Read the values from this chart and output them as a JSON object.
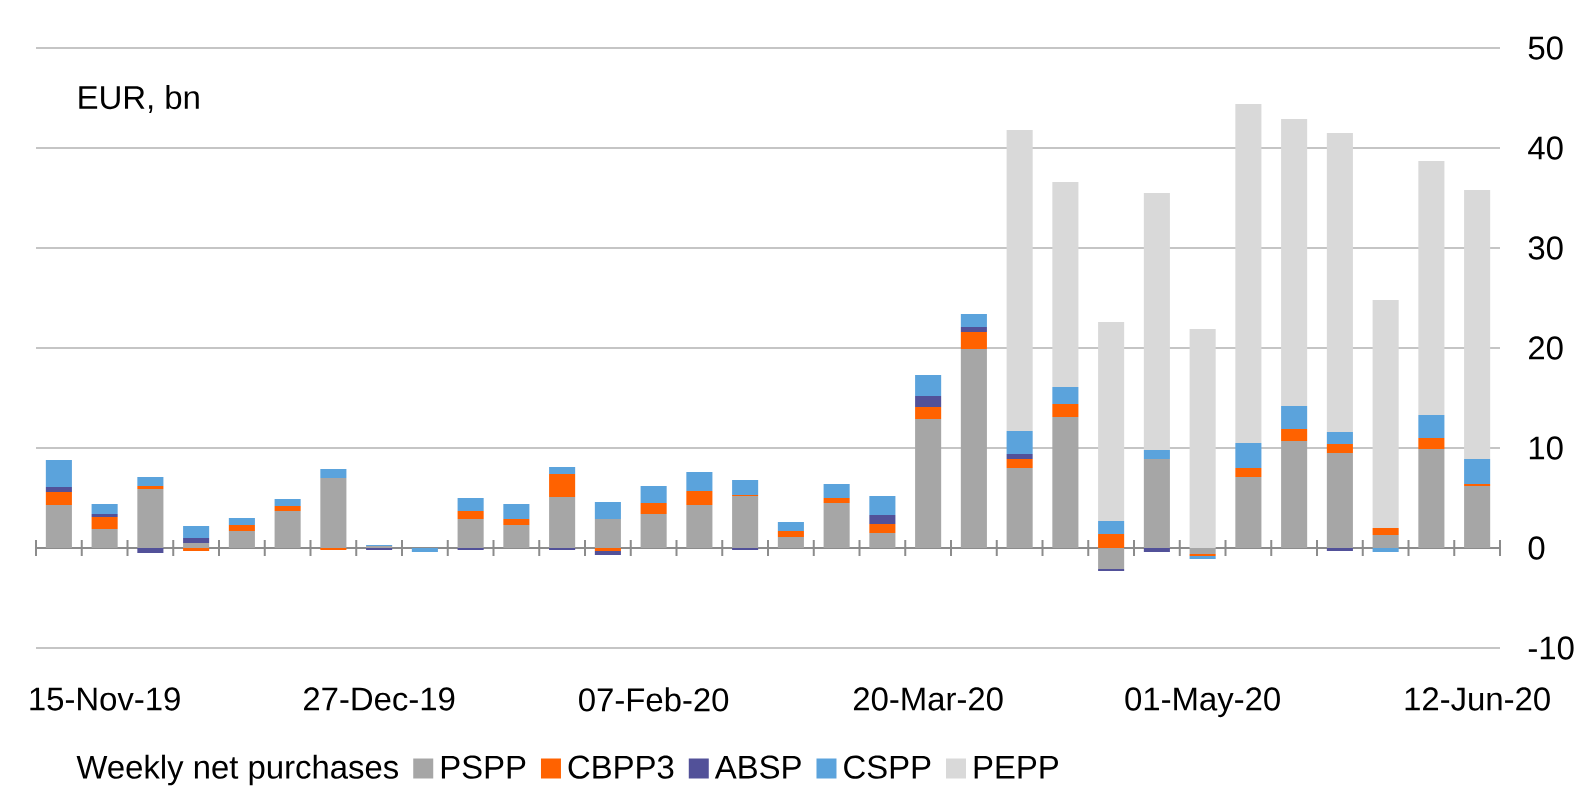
{
  "chart_data": {
    "type": "bar",
    "stacked": true,
    "categories": [
      null,
      "15-Nov-19",
      null,
      null,
      null,
      null,
      null,
      "27-Dec-19",
      null,
      null,
      null,
      null,
      null,
      "07-Feb-20",
      null,
      null,
      null,
      null,
      null,
      "20-Mar-20",
      null,
      null,
      null,
      null,
      null,
      "01-May-20",
      null,
      null,
      null,
      null,
      null,
      "12-Jun-20"
    ],
    "ylabel": "EUR, bn",
    "legend_title": "Weekly net purchases",
    "series": [
      {
        "name": "PSPP",
        "color": "#a6a6a6",
        "values": [
          4.3,
          1.9,
          5.9,
          0.5,
          1.7,
          3.7,
          7.0,
          0.2,
          null,
          2.9,
          2.3,
          5.1,
          2.9,
          3.4,
          4.3,
          5.2,
          1.1,
          4.5,
          1.5,
          12.9,
          19.9,
          8.0,
          13.1,
          -2.1,
          8.9,
          -0.6,
          7.1,
          10.7,
          9.5,
          1.3,
          9.9,
          6.2
        ]
      },
      {
        "name": "CBPP3",
        "color": "#ff6200",
        "values": [
          1.3,
          1.2,
          0.3,
          -0.3,
          0.6,
          0.5,
          -0.2,
          0,
          0,
          0.8,
          0.6,
          2.3,
          -0.3,
          1.1,
          1.4,
          0.1,
          0.6,
          0.5,
          0.9,
          1.2,
          1.7,
          0.9,
          1.3,
          1.4,
          0,
          -0.2,
          0.9,
          1.2,
          0.9,
          0.7,
          1.1,
          0.2
        ]
      },
      {
        "name": "ABSP",
        "color": "#525199",
        "values": [
          0.5,
          0.3,
          -0.5,
          0.5,
          0,
          0,
          0,
          -0.2,
          0,
          -0.2,
          0,
          -0.2,
          -0.4,
          0,
          0,
          -0.2,
          0,
          0,
          0.9,
          1.1,
          0.5,
          0.5,
          0,
          -0.2,
          -0.4,
          0,
          0,
          0,
          -0.3,
          0,
          0,
          0
        ]
      },
      {
        "name": "CSPP",
        "color": "#5ba3dc",
        "values": [
          2.7,
          1.0,
          0.9,
          1.2,
          0.7,
          0.7,
          0.9,
          0.1,
          -0.4,
          1.3,
          1.5,
          0.7,
          1.7,
          1.7,
          1.9,
          1.5,
          0.9,
          1.4,
          1.9,
          2.1,
          1.3,
          2.3,
          1.7,
          1.3,
          0.9,
          -0.3,
          2.5,
          2.3,
          1.2,
          -0.4,
          2.3,
          2.5
        ]
      },
      {
        "name": "PEPP",
        "color": "#d9d9d9",
        "values": [
          null,
          null,
          null,
          null,
          null,
          null,
          null,
          null,
          null,
          null,
          null,
          null,
          null,
          null,
          null,
          null,
          null,
          null,
          null,
          null,
          null,
          30.1,
          20.5,
          19.9,
          25.7,
          21.9,
          33.9,
          28.7,
          29.9,
          22.8,
          25.4,
          26.9
        ]
      }
    ],
    "ylim": [
      -10,
      50
    ],
    "yticks": [
      -10,
      0,
      10,
      20,
      30,
      40,
      50
    ],
    "grid": "y",
    "legend": "bottom"
  }
}
